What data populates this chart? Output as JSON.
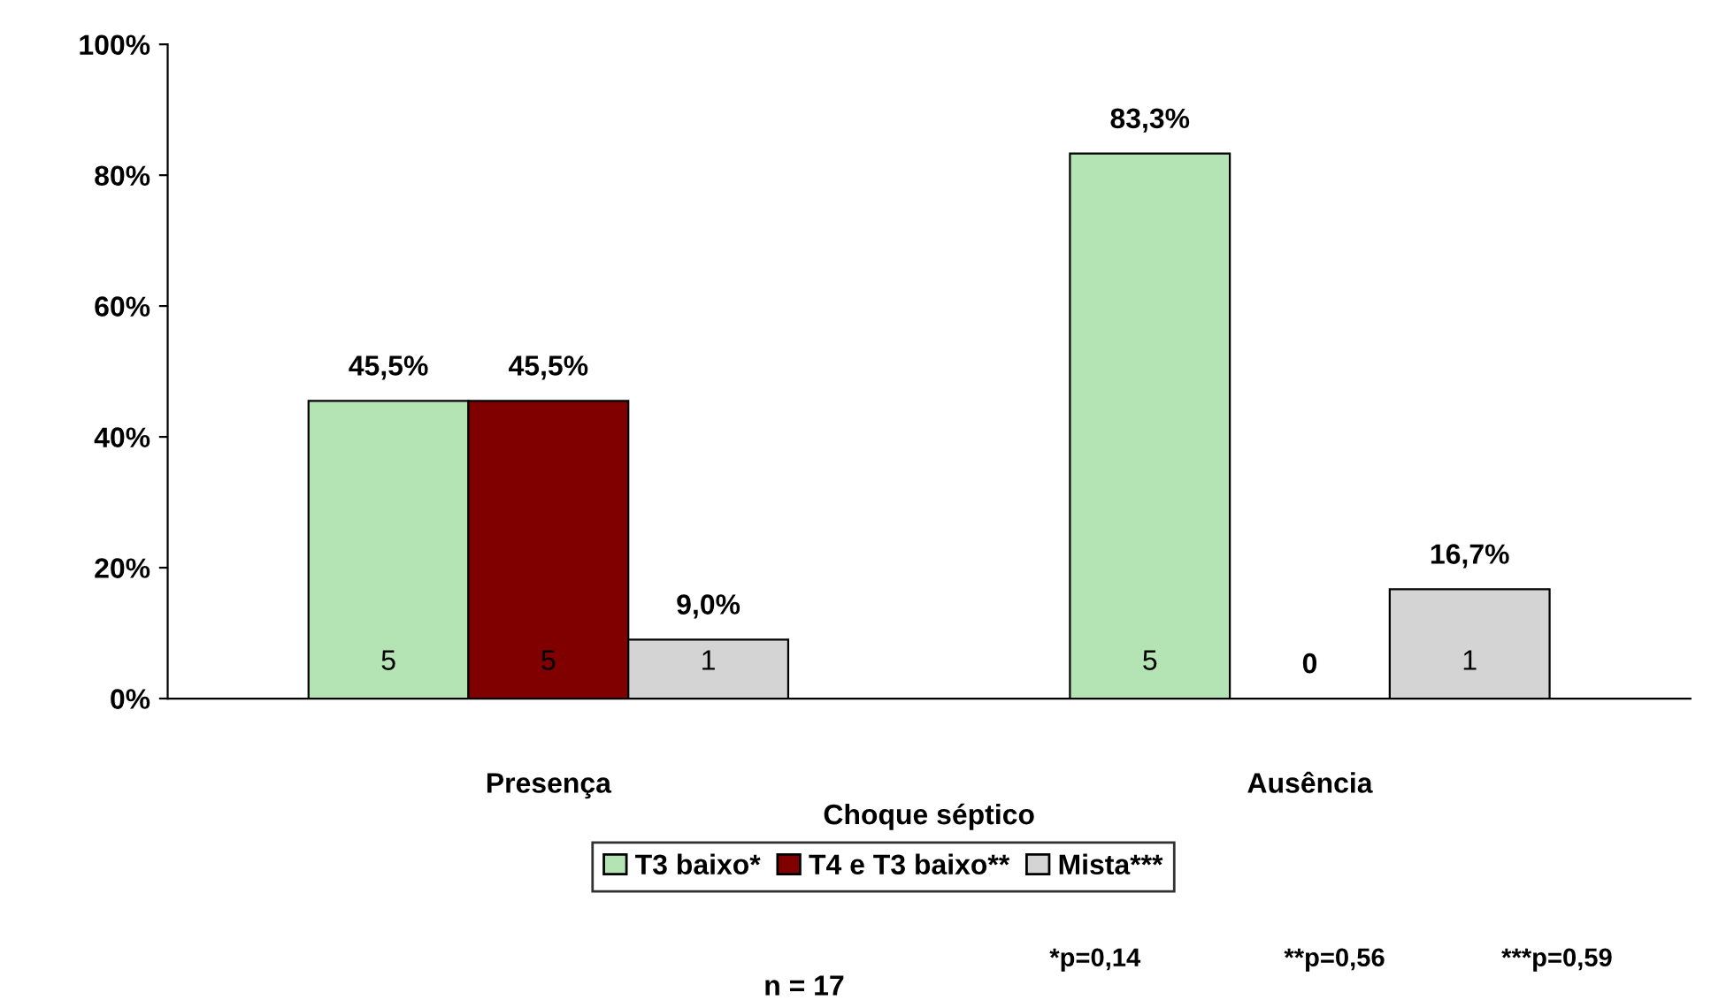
{
  "chart_data": {
    "type": "bar",
    "xlabel": "Choque séptico",
    "categories": [
      "Presença",
      "Ausência"
    ],
    "series": [
      {
        "name": "T3 baixo*",
        "color": "#b4e4b4",
        "values": [
          45.5,
          83.3
        ],
        "value_labels": [
          "45,5%",
          "83,3%"
        ]
      },
      {
        "name": "T4 e T3 baixo**",
        "color": "#800000",
        "values": [
          45.5,
          0
        ],
        "value_labels": [
          "45,5%",
          "0"
        ]
      },
      {
        "name": "Mista***",
        "color": "#d4d4d4",
        "values": [
          9.0,
          16.7
        ],
        "value_labels": [
          "9,0%",
          "16,7%"
        ]
      }
    ],
    "ylim": [
      0,
      100
    ],
    "yticks": [
      {
        "value": 0,
        "label": "0%"
      },
      {
        "value": 20,
        "label": "20%"
      },
      {
        "value": 40,
        "label": "40%"
      },
      {
        "value": 60,
        "label": "60%"
      },
      {
        "value": 80,
        "label": "80%"
      },
      {
        "value": 100,
        "label": "100%"
      }
    ],
    "grid": false,
    "legend": "bottom",
    "annotations": [
      "5",
      "5",
      "1",
      "5",
      "1",
      "*p=0,14",
      "**p=0,56",
      "***p=0,59",
      "n = 17"
    ]
  }
}
